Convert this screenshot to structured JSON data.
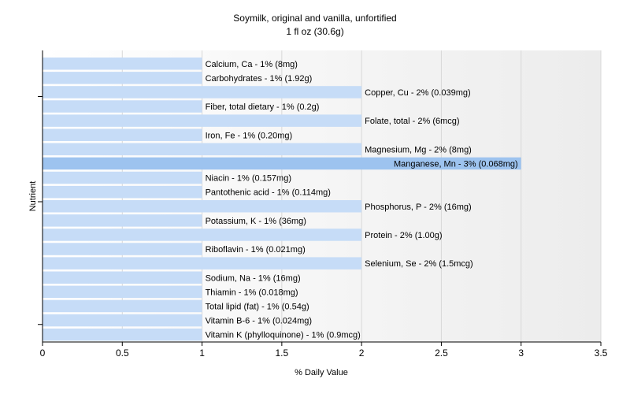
{
  "chart_data": {
    "type": "bar",
    "orientation": "horizontal",
    "title": "Soymilk, original and vanilla, unfortified",
    "subtitle": "1 fl oz (30.6g)",
    "xlabel": "% Daily Value",
    "ylabel": "Nutrient",
    "xlim": [
      0,
      3.5
    ],
    "xticks": [
      0,
      0.5,
      1,
      1.5,
      2,
      2.5,
      3,
      3.5
    ],
    "xtick_labels": [
      "0",
      "0.5",
      "1",
      "1.5",
      "2",
      "2.5",
      "3",
      "3.5"
    ],
    "grid": true,
    "colors": {
      "bar": "#c6dcf7",
      "bar_highlight": "#9dc3ef",
      "axis": "#000000",
      "grid": "#d8d8d8"
    },
    "categories": [
      "Calcium, Ca",
      "Carbohydrates",
      "Copper, Cu",
      "Fiber, total dietary",
      "Folate, total",
      "Iron, Fe",
      "Magnesium, Mg",
      "Manganese, Mn",
      "Niacin",
      "Pantothenic acid",
      "Phosphorus, P",
      "Potassium, K",
      "Protein",
      "Riboflavin",
      "Selenium, Se",
      "Sodium, Na",
      "Thiamin",
      "Total lipid (fat)",
      "Vitamin B-6",
      "Vitamin K (phylloquinone)"
    ],
    "values": [
      1,
      1,
      2,
      1,
      2,
      1,
      2,
      3,
      1,
      1,
      2,
      1,
      2,
      1,
      2,
      1,
      1,
      1,
      1,
      1
    ],
    "labels": [
      "Calcium, Ca - 1% (8mg)",
      "Carbohydrates - 1% (1.92g)",
      "Copper, Cu - 2% (0.039mg)",
      "Fiber, total dietary - 1% (0.2g)",
      "Folate, total - 2% (6mcg)",
      "Iron, Fe - 1% (0.20mg)",
      "Magnesium, Mg - 2% (8mg)",
      "Manganese, Mn - 3% (0.068mg)",
      "Niacin - 1% (0.157mg)",
      "Pantothenic acid - 1% (0.114mg)",
      "Phosphorus, P - 2% (16mg)",
      "Potassium, K - 1% (36mg)",
      "Protein - 2% (1.00g)",
      "Riboflavin - 1% (0.021mg)",
      "Selenium, Se - 2% (1.5mcg)",
      "Sodium, Na - 1% (16mg)",
      "Thiamin - 1% (0.018mg)",
      "Total lipid (fat) - 1% (0.54g)",
      "Vitamin B-6 - 1% (0.024mg)",
      "Vitamin K (phylloquinone) - 1% (0.9mcg)"
    ]
  }
}
